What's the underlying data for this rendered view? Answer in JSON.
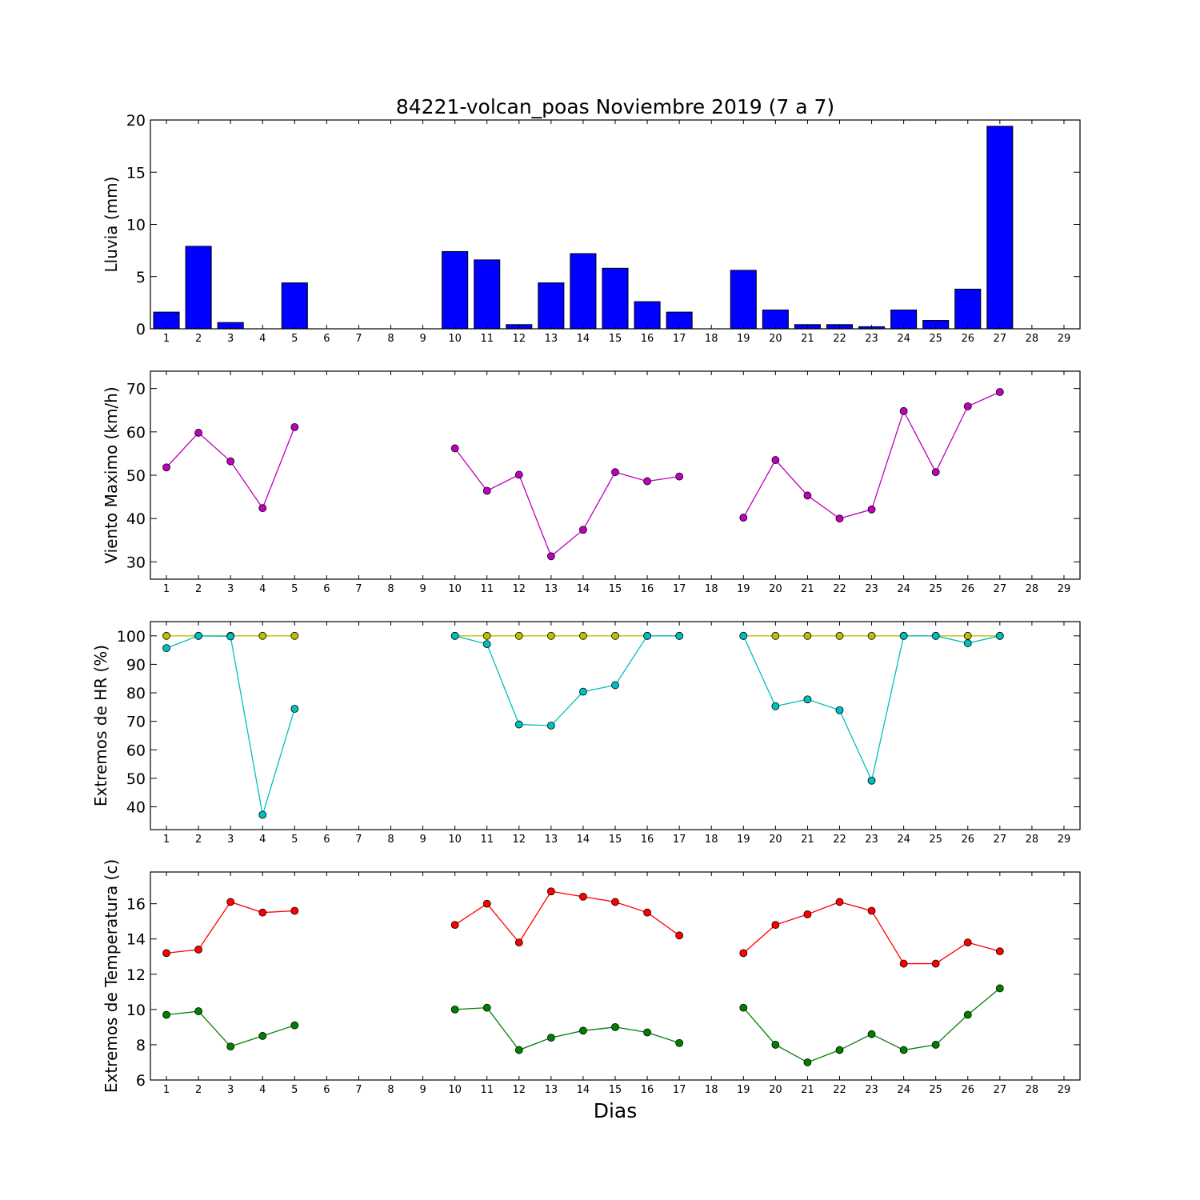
{
  "figure": {
    "title": "84221-volcan_poas Noviembre 2019  (7 a 7)",
    "xlabel": "Dias"
  },
  "chart_data": [
    {
      "type": "bar",
      "ylabel": "Lluvia (mm)",
      "ylim": [
        0,
        20
      ],
      "yticks": [
        0,
        5,
        10,
        15,
        20
      ],
      "x": [
        1,
        2,
        3,
        4,
        5,
        6,
        7,
        8,
        9,
        10,
        11,
        12,
        13,
        14,
        15,
        16,
        17,
        18,
        19,
        20,
        21,
        22,
        23,
        24,
        25,
        26,
        27,
        28,
        29
      ],
      "xlim": [
        0.5,
        29.5
      ],
      "series": [
        {
          "color": "#0000ff",
          "values": [
            1.6,
            7.9,
            0.6,
            0,
            4.4,
            0,
            0,
            0,
            0,
            7.4,
            6.6,
            0.4,
            4.4,
            7.2,
            5.8,
            2.6,
            1.6,
            0,
            5.6,
            1.8,
            0.4,
            0.4,
            0.2,
            1.8,
            0.8,
            3.8,
            19.4,
            null,
            null
          ]
        }
      ]
    },
    {
      "type": "line",
      "ylabel": "Viento Maximo (km/h)",
      "ylim": [
        26,
        74
      ],
      "yticks": [
        30,
        40,
        50,
        60,
        70
      ],
      "x": [
        1,
        2,
        3,
        4,
        5,
        6,
        7,
        8,
        9,
        10,
        11,
        12,
        13,
        14,
        15,
        16,
        17,
        18,
        19,
        20,
        21,
        22,
        23,
        24,
        25,
        26,
        27,
        28,
        29
      ],
      "xlim": [
        0.5,
        29.5
      ],
      "series": [
        {
          "color": "#bf00bf",
          "values": [
            51.8,
            59.8,
            53.2,
            42.4,
            61.1,
            null,
            null,
            null,
            null,
            56.2,
            46.4,
            50.1,
            31.3,
            37.4,
            50.7,
            48.6,
            49.7,
            null,
            40.2,
            53.5,
            45.3,
            40.0,
            42.1,
            64.8,
            50.7,
            65.9,
            69.2,
            null,
            null
          ]
        }
      ]
    },
    {
      "type": "line",
      "ylabel": "Extremos de HR (%)",
      "ylim": [
        32,
        105
      ],
      "yticks": [
        40,
        50,
        60,
        70,
        80,
        90,
        100
      ],
      "x": [
        1,
        2,
        3,
        4,
        5,
        6,
        7,
        8,
        9,
        10,
        11,
        12,
        13,
        14,
        15,
        16,
        17,
        18,
        19,
        20,
        21,
        22,
        23,
        24,
        25,
        26,
        27,
        28,
        29
      ],
      "xlim": [
        0.5,
        29.5
      ],
      "series": [
        {
          "color": "#bfbf00",
          "values": [
            100,
            100,
            100,
            100,
            100,
            null,
            null,
            null,
            null,
            100,
            100,
            100,
            100,
            100,
            100,
            100,
            100,
            null,
            100,
            100,
            100,
            100,
            100,
            100,
            100,
            100,
            100,
            null,
            null
          ]
        },
        {
          "color": "#00bfbf",
          "values": [
            95.7,
            100,
            99.8,
            37.2,
            74.4,
            null,
            null,
            null,
            null,
            100,
            97.1,
            68.9,
            68.5,
            80.4,
            82.7,
            100,
            100,
            null,
            100,
            75.3,
            77.7,
            73.9,
            49.2,
            100,
            100,
            97.4,
            100,
            null,
            null
          ]
        }
      ]
    },
    {
      "type": "line",
      "ylabel": "Extremos de Temperatura (c)",
      "ylim": [
        6,
        17.8
      ],
      "yticks": [
        6,
        8,
        10,
        12,
        14,
        16
      ],
      "x": [
        1,
        2,
        3,
        4,
        5,
        6,
        7,
        8,
        9,
        10,
        11,
        12,
        13,
        14,
        15,
        16,
        17,
        18,
        19,
        20,
        21,
        22,
        23,
        24,
        25,
        26,
        27,
        28,
        29
      ],
      "xlim": [
        0.5,
        29.5
      ],
      "series": [
        {
          "color": "#ff0000",
          "values": [
            13.2,
            13.4,
            16.1,
            15.5,
            15.6,
            null,
            null,
            null,
            null,
            14.8,
            16.0,
            13.8,
            16.7,
            16.4,
            16.1,
            15.5,
            14.2,
            null,
            13.2,
            14.8,
            15.4,
            16.1,
            15.6,
            12.6,
            12.6,
            13.8,
            13.3,
            null,
            null
          ]
        },
        {
          "color": "#008000",
          "values": [
            9.7,
            9.9,
            7.9,
            8.5,
            9.1,
            null,
            null,
            null,
            null,
            10.0,
            10.1,
            7.7,
            8.4,
            8.8,
            9.0,
            8.7,
            8.1,
            null,
            10.1,
            8.0,
            7.0,
            7.7,
            8.6,
            7.7,
            8.0,
            9.7,
            11.2,
            null,
            null
          ]
        }
      ]
    }
  ]
}
